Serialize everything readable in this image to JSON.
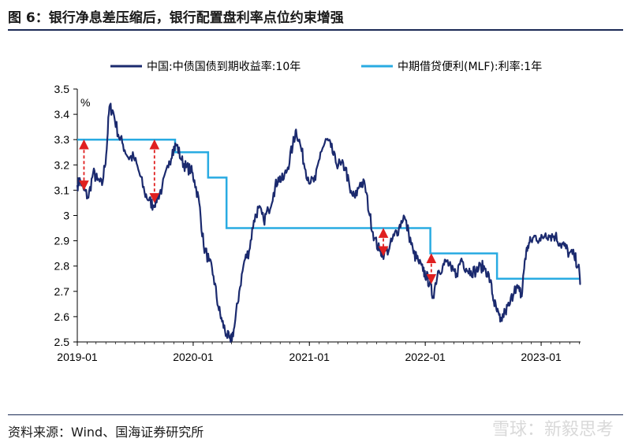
{
  "header": {
    "title": "图 6：银行净息差压缩后，银行配置盘利率点位约束增强"
  },
  "footer": {
    "source": "资料来源：Wind、国海证券研究所",
    "watermark": "雪球：新毅思考"
  },
  "chart_data": {
    "type": "line",
    "title": "",
    "ylabel": "%",
    "ylim": [
      2.5,
      3.5
    ],
    "yticks": [
      "2.5",
      "2.6",
      "2.7",
      "2.8",
      "2.9",
      "3",
      "3.1",
      "3.2",
      "3.3",
      "3.4",
      "3.5"
    ],
    "xticks": [
      "2019-01",
      "2020-01",
      "2021-01",
      "2022-01",
      "2023-01"
    ],
    "xlim": [
      "2019-01-01",
      "2023-05-05"
    ],
    "grid": false,
    "legend": "top",
    "colors": {
      "bond": "#1b2a6e",
      "mlf": "#29abe2",
      "arrow": "#e02020"
    },
    "series": [
      {
        "name": "中国:中债国债到期收益率:10年",
        "x": [
          "2019-01-01",
          "2019-01-10",
          "2019-01-22",
          "2019-02-05",
          "2019-02-20",
          "2019-03-05",
          "2019-03-20",
          "2019-04-02",
          "2019-04-12",
          "2019-04-24",
          "2019-05-10",
          "2019-05-25",
          "2019-06-10",
          "2019-06-28",
          "2019-07-15",
          "2019-08-01",
          "2019-08-15",
          "2019-08-28",
          "2019-09-10",
          "2019-09-25",
          "2019-10-15",
          "2019-10-28",
          "2019-11-10",
          "2019-11-25",
          "2019-12-10",
          "2019-12-25",
          "2020-01-05",
          "2020-01-20",
          "2020-02-03",
          "2020-02-20",
          "2020-03-05",
          "2020-03-20",
          "2020-04-01",
          "2020-04-15",
          "2020-04-28",
          "2020-05-10",
          "2020-05-25",
          "2020-06-10",
          "2020-06-25",
          "2020-07-10",
          "2020-07-25",
          "2020-08-10",
          "2020-08-25",
          "2020-09-10",
          "2020-09-25",
          "2020-10-10",
          "2020-10-25",
          "2020-11-10",
          "2020-11-20",
          "2020-12-05",
          "2020-12-20",
          "2021-01-05",
          "2021-01-20",
          "2021-02-05",
          "2021-02-25",
          "2021-03-10",
          "2021-03-25",
          "2021-04-10",
          "2021-04-25",
          "2021-05-10",
          "2021-05-25",
          "2021-06-10",
          "2021-06-25",
          "2021-07-10",
          "2021-07-25",
          "2021-08-10",
          "2021-08-25",
          "2021-09-10",
          "2021-09-25",
          "2021-10-10",
          "2021-10-25",
          "2021-11-10",
          "2021-11-25",
          "2021-12-10",
          "2021-12-25",
          "2022-01-05",
          "2022-01-15",
          "2022-01-25",
          "2022-02-10",
          "2022-02-25",
          "2022-03-10",
          "2022-03-25",
          "2022-04-10",
          "2022-04-25",
          "2022-05-10",
          "2022-05-25",
          "2022-06-10",
          "2022-06-25",
          "2022-07-10",
          "2022-07-25",
          "2022-08-05",
          "2022-08-15",
          "2022-08-25",
          "2022-09-10",
          "2022-09-25",
          "2022-10-10",
          "2022-10-25",
          "2022-11-01",
          "2022-11-10",
          "2022-11-20",
          "2022-12-01",
          "2022-12-15",
          "2022-12-30",
          "2023-01-15",
          "2023-01-30",
          "2023-02-15",
          "2023-03-01",
          "2023-03-15",
          "2023-03-30",
          "2023-04-15",
          "2023-04-28",
          "2023-05-05"
        ],
        "values": [
          3.12,
          3.14,
          3.1,
          3.07,
          3.17,
          3.14,
          3.12,
          3.24,
          3.43,
          3.41,
          3.32,
          3.28,
          3.23,
          3.23,
          3.17,
          3.09,
          3.06,
          3.04,
          3.07,
          3.11,
          3.19,
          3.26,
          3.28,
          3.22,
          3.19,
          3.18,
          3.14,
          3.05,
          2.88,
          2.82,
          2.76,
          2.64,
          2.58,
          2.53,
          2.5,
          2.56,
          2.7,
          2.82,
          2.86,
          2.98,
          3.03,
          2.98,
          3.02,
          3.09,
          3.15,
          3.14,
          3.19,
          3.28,
          3.34,
          3.27,
          3.18,
          3.13,
          3.14,
          3.25,
          3.3,
          3.27,
          3.21,
          3.2,
          3.19,
          3.09,
          3.07,
          3.13,
          3.12,
          3.0,
          2.91,
          2.86,
          2.85,
          2.87,
          2.92,
          2.95,
          3.0,
          2.93,
          2.85,
          2.82,
          2.78,
          2.76,
          2.73,
          2.68,
          2.78,
          2.8,
          2.82,
          2.78,
          2.77,
          2.83,
          2.79,
          2.78,
          2.78,
          2.8,
          2.79,
          2.74,
          2.66,
          2.62,
          2.58,
          2.62,
          2.65,
          2.72,
          2.7,
          2.68,
          2.82,
          2.88,
          2.9,
          2.92,
          2.9,
          2.93,
          2.92,
          2.92,
          2.89,
          2.88,
          2.85,
          2.84,
          2.8,
          2.73
        ]
      },
      {
        "name": "中期借贷便利(MLF):利率:1年",
        "step": true,
        "x": [
          "2019-01-01",
          "2019-11-05",
          "2020-02-17",
          "2020-04-15",
          "2022-01-17",
          "2022-08-15",
          "2023-05-05"
        ],
        "values": [
          3.3,
          3.25,
          3.15,
          2.95,
          2.85,
          2.75,
          2.75
        ]
      }
    ],
    "annotations": [
      {
        "type": "double-arrow",
        "x": "2019-01-22",
        "from": 3.3,
        "to": 3.1
      },
      {
        "type": "double-arrow",
        "x": "2019-09-01",
        "from": 3.3,
        "to": 3.05
      },
      {
        "type": "double-arrow",
        "x": "2021-08-22",
        "from": 2.95,
        "to": 2.84
      },
      {
        "type": "double-arrow",
        "x": "2022-01-20",
        "from": 2.85,
        "to": 2.73
      }
    ]
  }
}
